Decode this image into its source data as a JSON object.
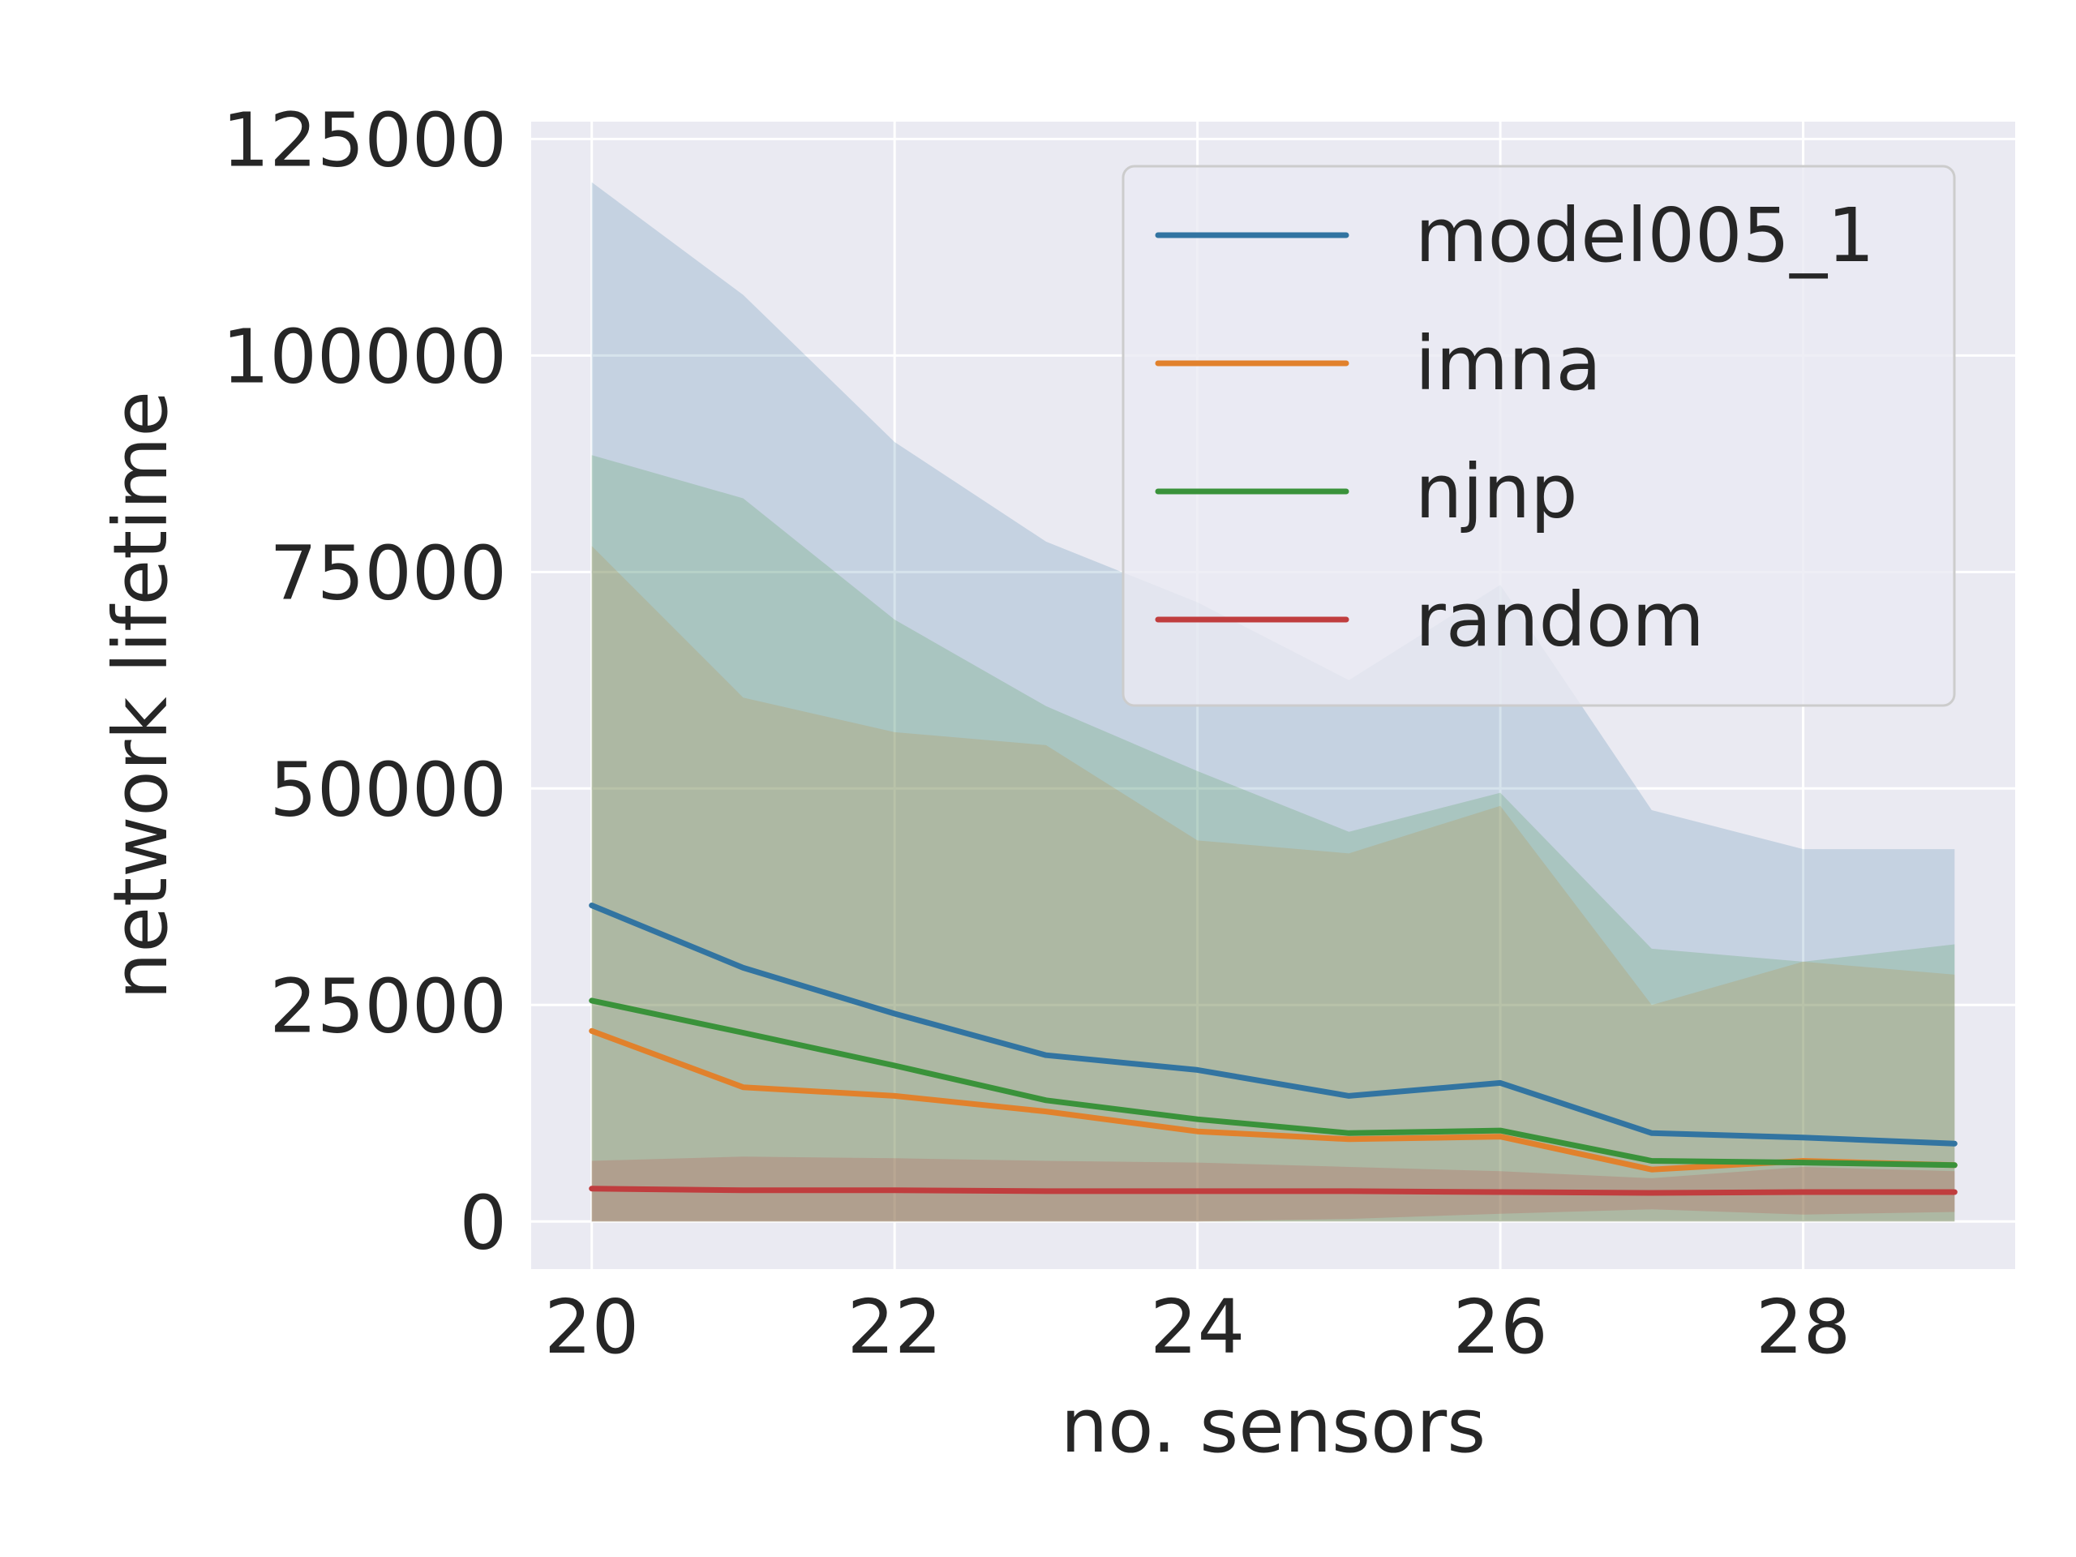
{
  "chart_data": {
    "type": "line",
    "title": "",
    "xlabel": "no. sensors",
    "ylabel": "network lifetime",
    "x": [
      20,
      21,
      22,
      23,
      24,
      25,
      26,
      27,
      28,
      29
    ],
    "xticks": [
      20,
      22,
      24,
      26,
      28
    ],
    "yticks": [
      0,
      25000,
      50000,
      75000,
      100000,
      125000
    ],
    "xlim": [
      19.6,
      29.4
    ],
    "ylim": [
      -5500,
      127000
    ],
    "grid": true,
    "legend_position": "top-right",
    "background": "#eaeaf2",
    "series": [
      {
        "name": "model005_1",
        "color": "#3274a1",
        "values": [
          36500,
          29300,
          24000,
          19200,
          17500,
          14500,
          16000,
          10200,
          9700,
          9000
        ],
        "band_upper": [
          120000,
          107000,
          90000,
          78500,
          71500,
          62500,
          73500,
          47500,
          43000,
          43000
        ],
        "band_lower": [
          0,
          0,
          0,
          0,
          0,
          0,
          0,
          0,
          0,
          0
        ]
      },
      {
        "name": "imna",
        "color": "#e1812c",
        "values": [
          22000,
          15500,
          14500,
          12700,
          10400,
          9500,
          9800,
          6000,
          7000,
          6500
        ],
        "band_upper": [
          78000,
          60500,
          56500,
          55000,
          44000,
          42500,
          48000,
          25000,
          30000,
          28500
        ],
        "band_lower": [
          0,
          0,
          0,
          0,
          0,
          0,
          0,
          0,
          0,
          0
        ]
      },
      {
        "name": "njnp",
        "color": "#3a923a",
        "values": [
          25500,
          21800,
          18000,
          14000,
          11800,
          10200,
          10500,
          7000,
          6800,
          6500
        ],
        "band_upper": [
          88500,
          83500,
          69500,
          59500,
          52000,
          45000,
          49500,
          31500,
          30000,
          32000
        ],
        "band_lower": [
          0,
          0,
          0,
          0,
          0,
          0,
          0,
          0,
          0,
          0
        ]
      },
      {
        "name": "random",
        "color": "#c03d3e",
        "values": [
          3800,
          3600,
          3600,
          3500,
          3500,
          3500,
          3400,
          3300,
          3400,
          3400
        ],
        "band_upper": [
          7000,
          7500,
          7300,
          7000,
          6800,
          6300,
          5800,
          5000,
          6300,
          5800
        ],
        "band_lower": [
          0,
          0,
          0,
          0,
          0,
          300,
          900,
          1400,
          800,
          1100
        ]
      }
    ]
  }
}
